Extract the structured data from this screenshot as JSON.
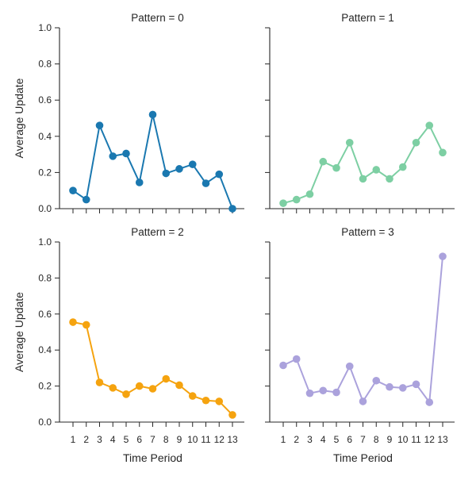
{
  "chart_data": {
    "type": "line",
    "xlabel": "Time Period",
    "ylabel": "Average Update",
    "ylim": [
      0,
      1.0
    ],
    "y_ticks": [
      "0.0",
      "0.2",
      "0.4",
      "0.6",
      "0.8",
      "1.0"
    ],
    "x": [
      1,
      2,
      3,
      4,
      5,
      6,
      7,
      8,
      9,
      10,
      11,
      12,
      13
    ],
    "x_ticks": [
      "1",
      "2",
      "3",
      "4",
      "5",
      "6",
      "7",
      "8",
      "9",
      "10",
      "11",
      "12",
      "13"
    ],
    "grid": false,
    "panels": [
      {
        "title": "Pattern = 0",
        "color": "#1a78b0",
        "values": [
          0.1,
          0.05,
          0.46,
          0.29,
          0.305,
          0.145,
          0.52,
          0.195,
          0.22,
          0.245,
          0.14,
          0.19,
          0.0
        ]
      },
      {
        "title": "Pattern = 1",
        "color": "#7dcfa3",
        "values": [
          0.03,
          0.05,
          0.08,
          0.26,
          0.225,
          0.365,
          0.165,
          0.215,
          0.165,
          0.23,
          0.365,
          0.46,
          0.31
        ]
      },
      {
        "title": "Pattern = 2",
        "color": "#f5a30f",
        "values": [
          0.555,
          0.54,
          0.22,
          0.19,
          0.155,
          0.2,
          0.185,
          0.24,
          0.205,
          0.145,
          0.12,
          0.115,
          0.04
        ]
      },
      {
        "title": "Pattern = 3",
        "color": "#aba2dc",
        "values": [
          0.315,
          0.35,
          0.16,
          0.175,
          0.165,
          0.31,
          0.115,
          0.23,
          0.195,
          0.19,
          0.21,
          0.11,
          0.92
        ]
      }
    ]
  }
}
